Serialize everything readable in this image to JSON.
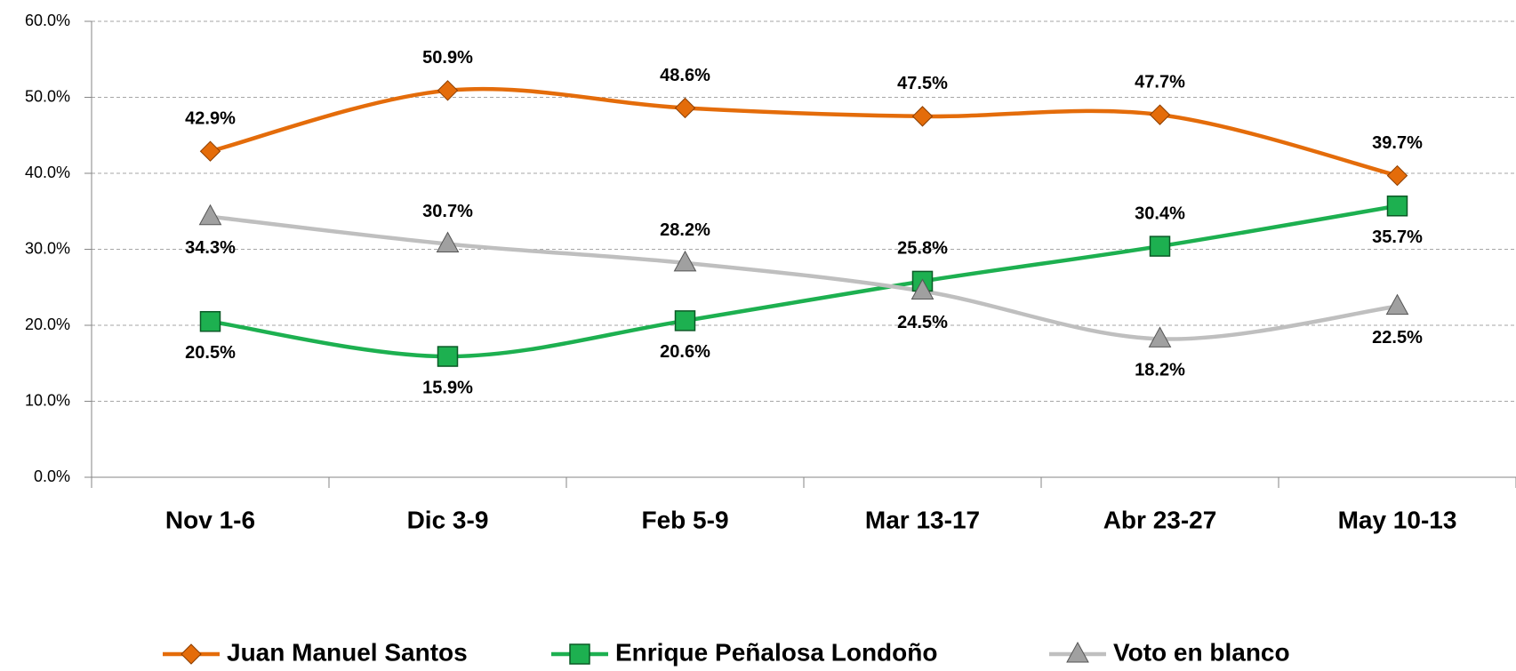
{
  "chart_data": {
    "type": "line",
    "categories": [
      "Nov 1-6",
      "Dic 3-9",
      "Feb 5-9",
      "Mar 13-17",
      "Abr 23-27",
      "May 10-13"
    ],
    "series": [
      {
        "name": "Juan Manuel Santos",
        "color": "#e46c0a",
        "marker": "diamond",
        "values": [
          42.9,
          50.9,
          48.6,
          47.5,
          47.7,
          39.7
        ],
        "value_labels": [
          "42.9%",
          "50.9%",
          "48.6%",
          "47.5%",
          "47.7%",
          "39.7%"
        ]
      },
      {
        "name": "Enrique Peñalosa Londoño",
        "color": "#1db050",
        "marker": "square",
        "values": [
          20.5,
          15.9,
          20.6,
          25.8,
          30.4,
          35.7
        ],
        "value_labels": [
          "20.5%",
          "15.9%",
          "20.6%",
          "25.8%",
          "30.4%",
          "35.7%"
        ]
      },
      {
        "name": "Voto en blanco",
        "color": "#bfbfbf",
        "marker": "triangle",
        "values": [
          34.3,
          30.7,
          28.2,
          24.5,
          18.2,
          22.5
        ],
        "value_labels": [
          "34.3%",
          "30.7%",
          "28.2%",
          "24.5%",
          "18.2%",
          "22.5%"
        ]
      }
    ],
    "ylim": [
      0,
      60
    ],
    "yticks": [
      {
        "value": 0,
        "label": "0.0%"
      },
      {
        "value": 10,
        "label": "10.0%"
      },
      {
        "value": 20,
        "label": "20.0%"
      },
      {
        "value": 30,
        "label": "30.0%"
      },
      {
        "value": 40,
        "label": "40.0%"
      },
      {
        "value": 50,
        "label": "50.0%"
      },
      {
        "value": 60,
        "label": "60.0%"
      }
    ],
    "grid": true,
    "legend": "bottom",
    "smooth": true
  }
}
